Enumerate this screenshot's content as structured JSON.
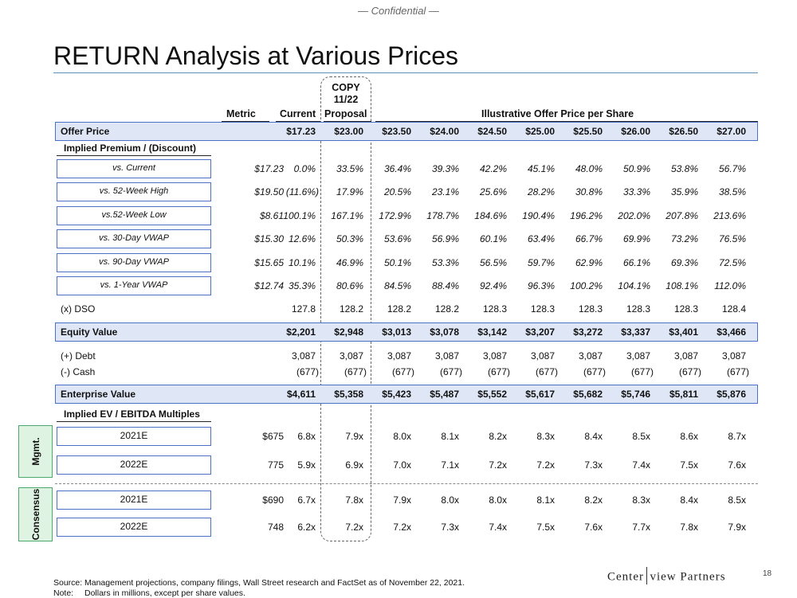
{
  "confidential": "— Confidential —",
  "title": "RETURN Analysis at Various Prices",
  "headers": {
    "metric": "Metric",
    "current": "Current",
    "copy_line1": "COPY",
    "copy_line2": "11/22",
    "proposal": "Proposal",
    "offer_range": "Illustrative Offer Price per Share"
  },
  "offer_price": {
    "label": "Offer Price",
    "values": [
      "$17.23",
      "$23.00",
      "$23.50",
      "$24.00",
      "$24.50",
      "$25.00",
      "$25.50",
      "$26.00",
      "$26.50",
      "$27.00"
    ]
  },
  "premium_section": "Implied Premium / (Discount)",
  "premium_rows": [
    {
      "label": "vs. Current",
      "metric": "$17.23",
      "values": [
        "0.0%",
        "33.5%",
        "36.4%",
        "39.3%",
        "42.2%",
        "45.1%",
        "48.0%",
        "50.9%",
        "53.8%",
        "56.7%"
      ]
    },
    {
      "label": "vs. 52-Week High",
      "metric": "$19.50",
      "values": [
        "(11.6%)",
        "17.9%",
        "20.5%",
        "23.1%",
        "25.6%",
        "28.2%",
        "30.8%",
        "33.3%",
        "35.9%",
        "38.5%"
      ]
    },
    {
      "label": "vs.52-Week Low",
      "metric": "$8.61",
      "values": [
        "100.1%",
        "167.1%",
        "172.9%",
        "178.7%",
        "184.6%",
        "190.4%",
        "196.2%",
        "202.0%",
        "207.8%",
        "213.6%"
      ]
    },
    {
      "label": "vs. 30-Day VWAP",
      "metric": "$15.30",
      "values": [
        "12.6%",
        "50.3%",
        "53.6%",
        "56.9%",
        "60.1%",
        "63.4%",
        "66.7%",
        "69.9%",
        "73.2%",
        "76.5%"
      ]
    },
    {
      "label": "vs. 90-Day VWAP",
      "metric": "$15.65",
      "values": [
        "10.1%",
        "46.9%",
        "50.1%",
        "53.3%",
        "56.5%",
        "59.7%",
        "62.9%",
        "66.1%",
        "69.3%",
        "72.5%"
      ]
    },
    {
      "label": "vs. 1-Year VWAP",
      "metric": "$12.74",
      "values": [
        "35.3%",
        "80.6%",
        "84.5%",
        "88.4%",
        "92.4%",
        "96.3%",
        "100.2%",
        "104.1%",
        "108.1%",
        "112.0%"
      ]
    }
  ],
  "dso": {
    "label": "(x) DSO",
    "values": [
      "127.8",
      "128.2",
      "128.2",
      "128.2",
      "128.3",
      "128.3",
      "128.3",
      "128.3",
      "128.3",
      "128.4"
    ]
  },
  "equity_value": {
    "label": "Equity Value",
    "values": [
      "$2,201",
      "$2,948",
      "$3,013",
      "$3,078",
      "$3,142",
      "$3,207",
      "$3,272",
      "$3,337",
      "$3,401",
      "$3,466"
    ]
  },
  "debt": {
    "label": "(+) Debt",
    "values": [
      "3,087",
      "3,087",
      "3,087",
      "3,087",
      "3,087",
      "3,087",
      "3,087",
      "3,087",
      "3,087",
      "3,087"
    ]
  },
  "cash": {
    "label": "(-) Cash",
    "values": [
      "(677)",
      "(677)",
      "(677)",
      "(677)",
      "(677)",
      "(677)",
      "(677)",
      "(677)",
      "(677)",
      "(677)"
    ]
  },
  "enterprise_value": {
    "label": "Enterprise Value",
    "values": [
      "$4,611",
      "$5,358",
      "$5,423",
      "$5,487",
      "$5,552",
      "$5,617",
      "$5,682",
      "$5,746",
      "$5,811",
      "$5,876"
    ]
  },
  "ev_section": "Implied EV / EBITDA Multiples",
  "mgmt_label": "Mgmt.",
  "consensus_label": "Consensus",
  "mgmt_rows": [
    {
      "label": "2021E",
      "metric": "$675",
      "values": [
        "6.8x",
        "7.9x",
        "8.0x",
        "8.1x",
        "8.2x",
        "8.3x",
        "8.4x",
        "8.5x",
        "8.6x",
        "8.7x"
      ]
    },
    {
      "label": "2022E",
      "metric": "775",
      "values": [
        "5.9x",
        "6.9x",
        "7.0x",
        "7.1x",
        "7.2x",
        "7.2x",
        "7.3x",
        "7.4x",
        "7.5x",
        "7.6x"
      ]
    }
  ],
  "consensus_rows": [
    {
      "label": "2021E",
      "metric": "$690",
      "values": [
        "6.7x",
        "7.8x",
        "7.9x",
        "8.0x",
        "8.0x",
        "8.1x",
        "8.2x",
        "8.3x",
        "8.4x",
        "8.5x"
      ]
    },
    {
      "label": "2022E",
      "metric": "748",
      "values": [
        "6.2x",
        "7.2x",
        "7.2x",
        "7.3x",
        "7.4x",
        "7.5x",
        "7.6x",
        "7.7x",
        "7.8x",
        "7.9x"
      ]
    }
  ],
  "footer": {
    "source_label": "Source:",
    "source_text": "Management projections, company filings, Wall Street research and FactSet as of November 22, 2021.",
    "note_label": "Note:",
    "note_text": "Dollars in millions, except per share values."
  },
  "logo_left": "Center",
  "logo_right": "view Partners",
  "page_number": "18"
}
